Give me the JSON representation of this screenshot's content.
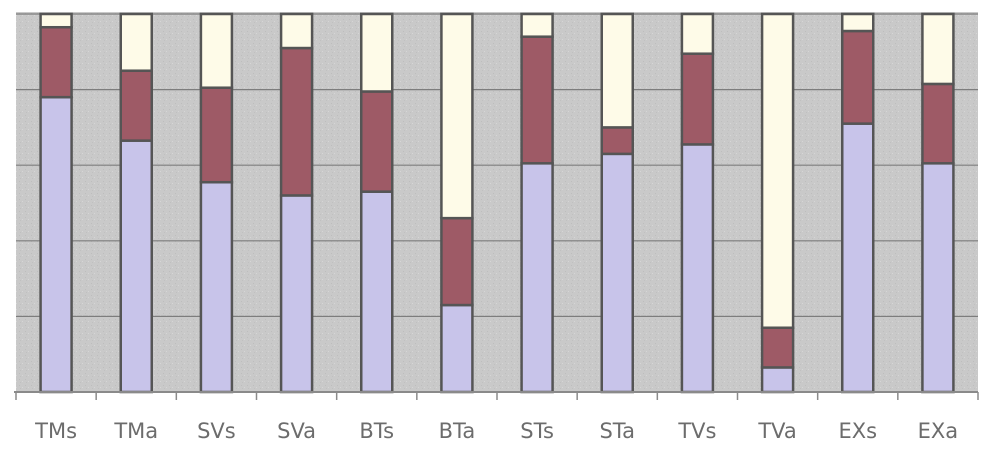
{
  "chart_data": {
    "type": "bar",
    "stacked": true,
    "normalized": true,
    "ylim": [
      0,
      100
    ],
    "grid": true,
    "categories": [
      "TMs",
      "TMa",
      "SVs",
      "SVa",
      "BTs",
      "BTa",
      "STs",
      "STa",
      "TVs",
      "TVa",
      "EXs",
      "EXa"
    ],
    "series": [
      {
        "color": "#c8c4ea",
        "values": [
          78,
          66.5,
          55.5,
          52,
          53,
          23,
          60.5,
          63,
          65.5,
          6.5,
          71,
          60.5
        ]
      },
      {
        "color": "#9e5a66",
        "values": [
          18.5,
          18.5,
          25,
          39,
          26.5,
          23,
          33.5,
          7,
          24,
          10.5,
          24.5,
          21
        ]
      },
      {
        "color": "#fefbe8",
        "values": [
          3.5,
          15,
          19.5,
          9,
          20.5,
          54,
          6,
          30,
          10.5,
          83,
          4.5,
          18.5
        ]
      }
    ],
    "colors": {
      "plot_background": "#c9c9c9",
      "axis": "#8a8a8a",
      "bar_outline": "#555555"
    }
  }
}
